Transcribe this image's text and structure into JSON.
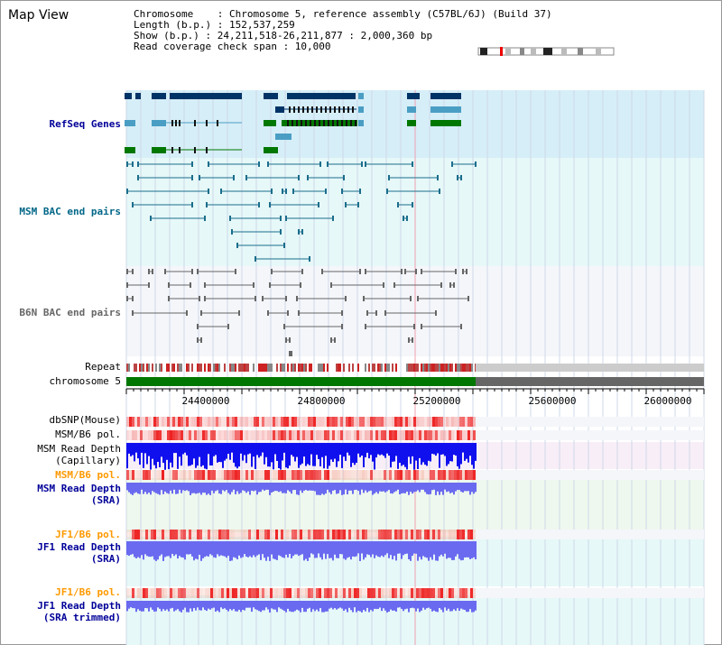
{
  "page": {
    "title": "Map View"
  },
  "info": {
    "chromosome": "Chromosome    : Chromosome 5, reference assembly (C57BL/6J) (Build 37)",
    "length": "Length (b.p.) : 152,537,259",
    "show": "Show (b.p.) : 24,211,518-26,211,877 : 2,000,360 bp",
    "coverage_span": "Read coverage check span : 10,000"
  },
  "tracks": {
    "refseq": "RefSeq Genes",
    "msm_bac": "MSM BAC end pairs",
    "b6n_bac": "B6N BAC end pairs",
    "repeat": "Repeat",
    "chromosome": "chromosome 5",
    "dbsnp": "dbSNP(Mouse)",
    "msm_b6_pol_1": "MSM/B6 pol.",
    "msm_read_depth_cap_1": "MSM Read Depth",
    "msm_read_depth_cap_2": "(Capillary)",
    "msm_b6_pol_2": "MSM/B6 pol.",
    "msm_read_depth_sra_1": "MSM Read Depth",
    "msm_read_depth_sra_2": "(SRA)",
    "jf1_b6_pol_1": "JF1/B6 pol.",
    "jf1_read_depth_sra_1": "JF1 Read Depth",
    "jf1_read_depth_sra_2": "(SRA)",
    "jf1_b6_pol_2": "JF1/B6 pol.",
    "jf1_read_depth_trim_1": "JF1 Read Depth",
    "jf1_read_depth_trim_2": "(SRA trimmed)"
  },
  "ruler": {
    "ticks": [
      "24400000",
      "24800000",
      "25200000",
      "25600000",
      "26000000"
    ]
  },
  "colors": {
    "refseq_bg": "#d6eef8",
    "bac_bg": "#e6f8f8",
    "gene_dark": "#003366",
    "gene_mid": "#4a9ec4",
    "gene_green": "#007700",
    "msm_line": "#1b6e8c",
    "b6n_line": "#666666",
    "chrom_green": "#007700",
    "chrom_gray": "#666666",
    "label_blue": "#000099",
    "label_orange": "#ff9900",
    "label_teal": "#006688"
  }
}
